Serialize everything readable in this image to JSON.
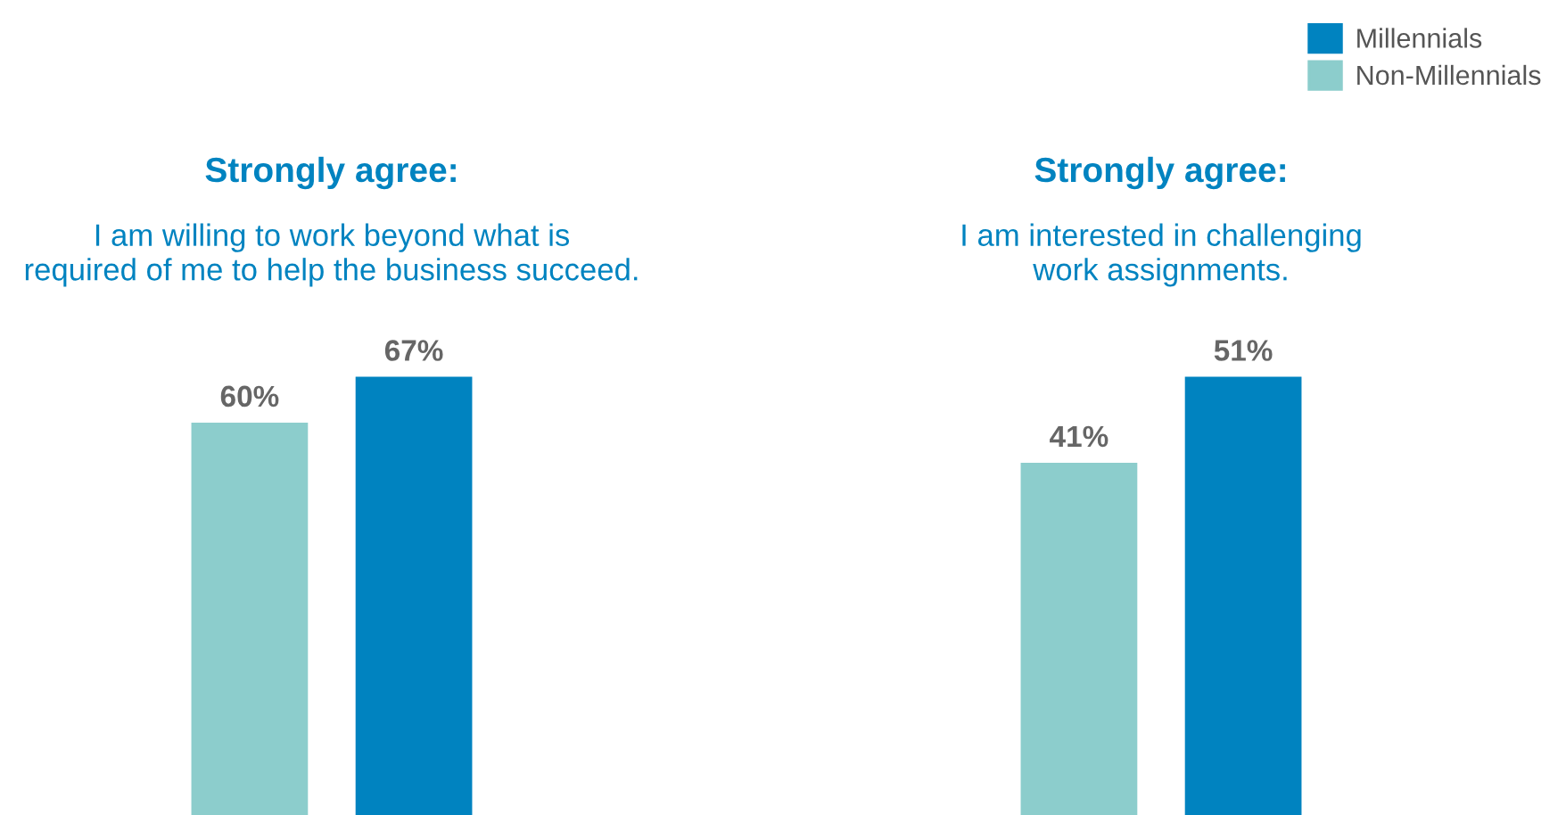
{
  "chart_data": [
    {
      "type": "bar",
      "title": "Strongly agree:",
      "subtitle": "I am willing to work beyond what is\nrequired of me to help the business succeed.",
      "categories": [
        null
      ],
      "series": [
        {
          "color": "#8ccdcc",
          "values": [
            60
          ],
          "value_labels": [
            "60%"
          ]
        },
        {
          "color": "#0083c0",
          "values": [
            67
          ],
          "value_labels": [
            "67%"
          ]
        }
      ]
    },
    {
      "type": "bar",
      "title": "Strongly agree:",
      "subtitle": "I am interested in challenging\nwork assignments.",
      "categories": [
        null
      ],
      "legend": "top right",
      "series": [
        {
          "name": "Non-Millennials",
          "color": "#8ccdcc",
          "values": [
            41
          ],
          "value_labels": [
            "41%"
          ]
        },
        {
          "name": "Millennials",
          "color": "#0083c0",
          "values": [
            51
          ],
          "value_labels": [
            "51%"
          ]
        }
      ]
    }
  ]
}
